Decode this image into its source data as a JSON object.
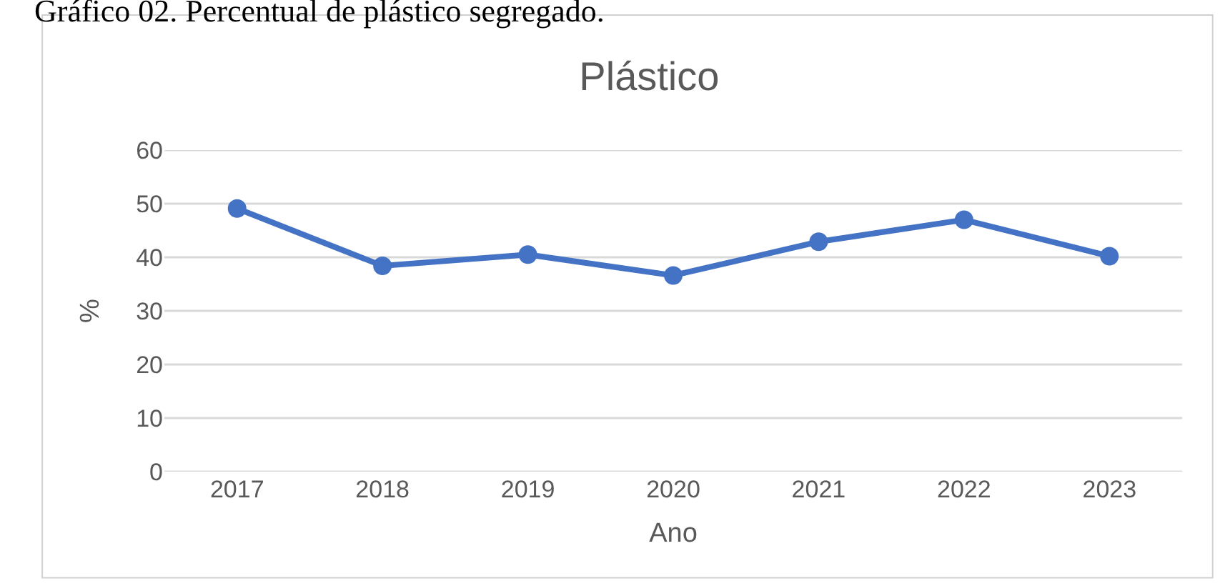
{
  "chart_data": {
    "type": "line",
    "title": "Plástico",
    "xlabel": "Ano",
    "ylabel": "%",
    "categories": [
      "2017",
      "2018",
      "2019",
      "2020",
      "2021",
      "2022",
      "2023"
    ],
    "series": [
      {
        "color": "#4472c4",
        "values": [
          49.1,
          38.4,
          40.5,
          36.6,
          42.9,
          47.0,
          40.2
        ]
      }
    ],
    "ylim": [
      0,
      60
    ],
    "yticks": [
      0,
      10,
      20,
      30,
      40,
      50,
      60
    ],
    "grid": "y",
    "marker": "circle",
    "line_style": "solid",
    "annotations": [
      "Gráfico 02. Percentual de plástico segregado."
    ]
  }
}
